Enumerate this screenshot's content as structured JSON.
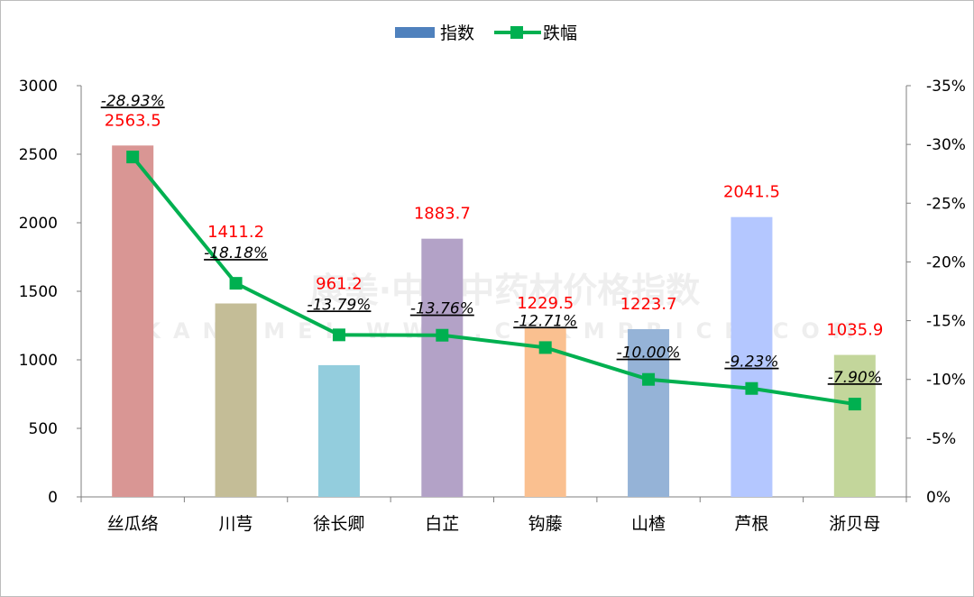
{
  "chart_data": {
    "type": "bar",
    "categories": [
      "丝瓜络",
      "川芎",
      "徐长卿",
      "白芷",
      "钩藤",
      "山楂",
      "芦根",
      "浙贝母"
    ],
    "series": [
      {
        "name": "指数",
        "kind": "bar",
        "values": [
          2563.5,
          1411.2,
          961.2,
          1883.7,
          1229.5,
          1223.7,
          2041.5,
          1035.9
        ],
        "labels": [
          "2563.5",
          "1411.2",
          "961.2",
          "1883.7",
          "1229.5",
          "1223.7",
          "2041.5",
          "1035.9"
        ]
      },
      {
        "name": "跌幅",
        "kind": "line",
        "axis": "right",
        "values": [
          -28.93,
          -18.18,
          -13.79,
          -13.76,
          -12.71,
          -10.0,
          -9.23,
          -7.9
        ],
        "labels": [
          "-28.93%",
          "-18.18%",
          "-13.79%",
          "-13.76%",
          "-12.71%",
          "-10.00%",
          "-9.23%",
          "-7.90%"
        ]
      }
    ],
    "bar_colors": [
      "#d99694",
      "#c4bd97",
      "#93cddd",
      "#b3a2c7",
      "#fac090",
      "#95b3d7",
      "#b4c7ff",
      "#c3d69b"
    ],
    "line_color": "#00b050",
    "value_label_color": "#ff0000",
    "y_left": {
      "min": 0,
      "max": 3000,
      "ticks": [
        "0",
        "500",
        "1000",
        "1500",
        "2000",
        "2500",
        "3000"
      ]
    },
    "y_right": {
      "min": 0,
      "max": -35,
      "ticks": [
        "0%",
        "-5%",
        "-10%",
        "-15%",
        "-20%",
        "-25%",
        "-30%",
        "-35%"
      ]
    },
    "legend_position": "top-center",
    "grid": false
  },
  "watermark": {
    "text": "康美·中国中药材价格指数",
    "sub": "KANGMEI WWW.CNKMPRICE.COM"
  }
}
